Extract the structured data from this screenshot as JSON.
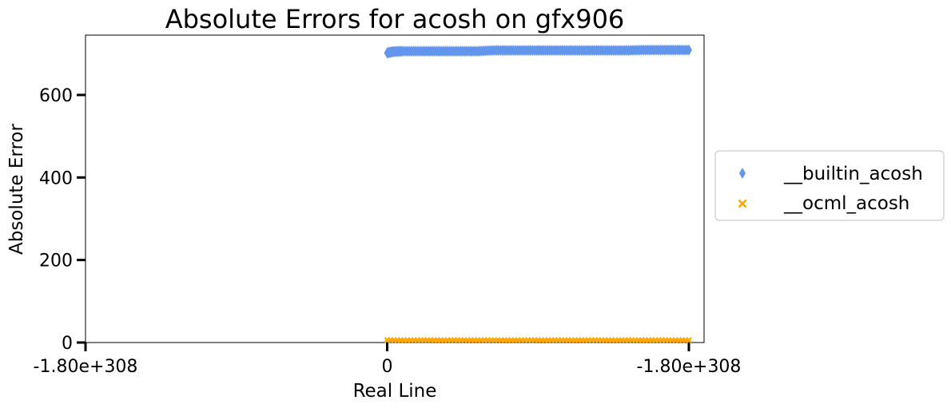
{
  "chart_data": {
    "type": "scatter",
    "title": "Absolute Errors for acosh on gfx906",
    "xlabel": "Real Line",
    "ylabel": "Absolute Error",
    "x_ticks": [
      {
        "value": -1,
        "label": "-1.80e+308"
      },
      {
        "value": 0,
        "label": "0"
      },
      {
        "value": 1,
        "label": "-1.80e+308"
      }
    ],
    "xlim": [
      -1,
      1
    ],
    "ylim": [
      0,
      745
    ],
    "y_ticks": [
      0,
      200,
      400,
      600
    ],
    "grid": false,
    "legend_position": "right",
    "series": [
      {
        "name": "__builtin_acosh",
        "marker": "diamond",
        "color": "#6495ED",
        "x": [
          0.0,
          0.02,
          0.05,
          0.1,
          0.15,
          0.2,
          0.25,
          0.3,
          0.35,
          0.4,
          0.45,
          0.5,
          0.55,
          0.6,
          0.65,
          0.7,
          0.75,
          0.8,
          0.85,
          0.9,
          0.95,
          1.0
        ],
        "y": [
          702,
          705,
          706,
          706,
          706,
          706,
          706,
          706,
          708,
          708,
          708,
          708,
          708,
          708,
          708,
          708,
          708,
          708,
          709,
          709,
          709,
          709
        ]
      },
      {
        "name": "__ocml_acosh",
        "marker": "x",
        "color": "#FFA500",
        "x": [
          0.0,
          0.1,
          0.2,
          0.3,
          0.4,
          0.5,
          0.6,
          0.7,
          0.8,
          0.9,
          1.0
        ],
        "y": [
          0,
          0,
          0,
          0,
          0,
          0,
          0,
          0,
          0,
          0,
          0
        ]
      }
    ]
  }
}
